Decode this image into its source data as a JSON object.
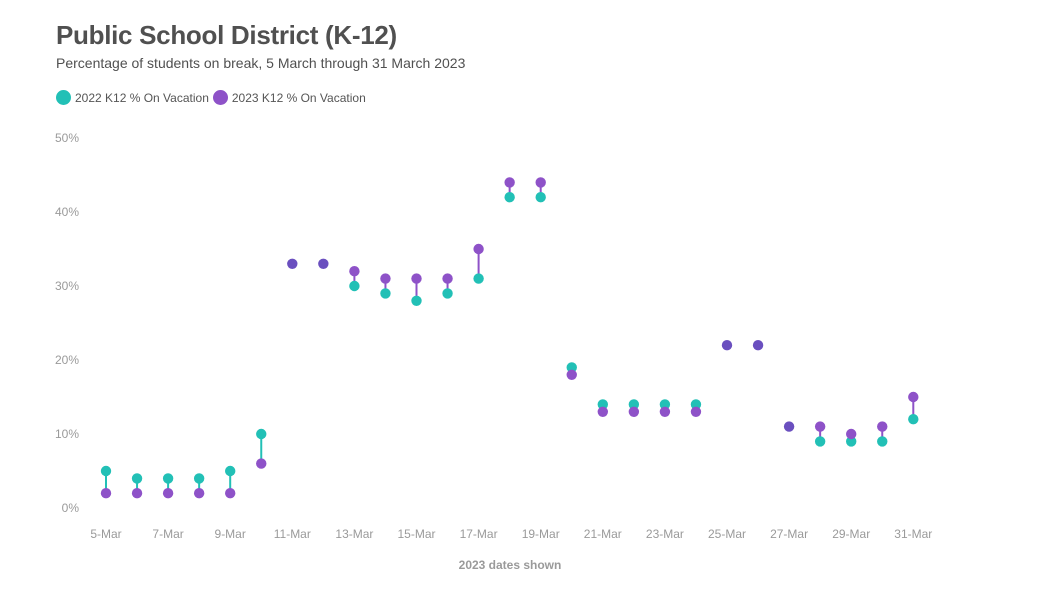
{
  "header": {
    "title": "Public School District (K-12)",
    "subtitle": "Percentage of students on break, 5 March through 31 March 2023"
  },
  "colors": {
    "series_2022": "#22c0b6",
    "series_2023": "#8e52c8",
    "overlap": "#6a4fbf"
  },
  "chart_data": {
    "type": "dumbbell",
    "title": "Public School District (K-12)",
    "subtitle": "Percentage of students on break, 5 March through 31 March 2023",
    "xlabel": "2023 dates shown",
    "ylabel": "",
    "ylim": [
      0,
      50
    ],
    "y_unit": "%",
    "y_ticks": [
      0,
      10,
      20,
      30,
      40,
      50
    ],
    "y_tick_labels": [
      "0%",
      "10%",
      "20%",
      "30%",
      "40%",
      "50%"
    ],
    "x_tick_labels": [
      "5-Mar",
      "7-Mar",
      "9-Mar",
      "11-Mar",
      "13-Mar",
      "15-Mar",
      "17-Mar",
      "19-Mar",
      "21-Mar",
      "23-Mar",
      "25-Mar",
      "27-Mar",
      "29-Mar",
      "31-Mar"
    ],
    "legend_position": "top-left",
    "grid": false,
    "x": [
      "5-Mar",
      "6-Mar",
      "7-Mar",
      "8-Mar",
      "9-Mar",
      "10-Mar",
      "11-Mar",
      "12-Mar",
      "13-Mar",
      "14-Mar",
      "15-Mar",
      "16-Mar",
      "17-Mar",
      "18-Mar",
      "19-Mar",
      "20-Mar",
      "21-Mar",
      "22-Mar",
      "23-Mar",
      "24-Mar",
      "25-Mar",
      "26-Mar",
      "27-Mar",
      "28-Mar",
      "29-Mar",
      "30-Mar",
      "31-Mar"
    ],
    "series": [
      {
        "name": "2022 K12 % On Vacation",
        "values": [
          5,
          4,
          4,
          4,
          5,
          10,
          33,
          33,
          30,
          29,
          28,
          29,
          31,
          42,
          42,
          19,
          14,
          14,
          14,
          14,
          22,
          22,
          11,
          9,
          9,
          9,
          12
        ]
      },
      {
        "name": "2023 K12 % On Vacation",
        "values": [
          2,
          2,
          2,
          2,
          2,
          6,
          33,
          33,
          32,
          31,
          31,
          31,
          35,
          44,
          44,
          18,
          13,
          13,
          13,
          13,
          22,
          22,
          11,
          11,
          10,
          11,
          15
        ]
      }
    ]
  }
}
